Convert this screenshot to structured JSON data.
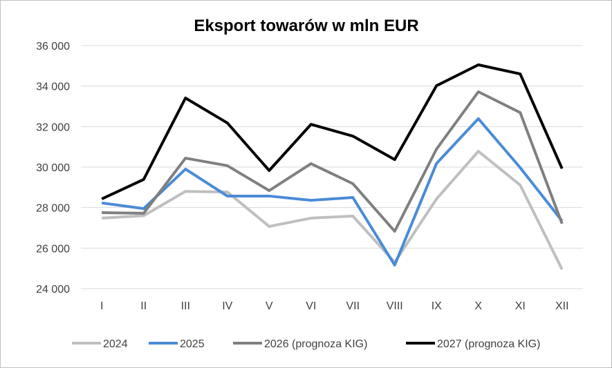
{
  "chart_data": {
    "type": "line",
    "title": "Eksport towarów w mln EUR",
    "xlabel": "",
    "ylabel": "",
    "categories": [
      "I",
      "II",
      "III",
      "IV",
      "V",
      "VI",
      "VII",
      "VIII",
      "IX",
      "X",
      "XI",
      "XII"
    ],
    "ylim": [
      24000,
      36000
    ],
    "yticks": [
      24000,
      26000,
      28000,
      30000,
      32000,
      34000,
      36000
    ],
    "ytick_labels": [
      "24 000",
      "26 000",
      "28 000",
      "30 000",
      "32 000",
      "34 000",
      "36 000"
    ],
    "grid": "horizontal",
    "legend_position": "bottom",
    "series": [
      {
        "name": "2024",
        "color": "#bfbfbf",
        "values": [
          27480,
          27600,
          28800,
          28770,
          27070,
          27480,
          27580,
          25300,
          28430,
          30780,
          29110,
          24950
        ]
      },
      {
        "name": "2025",
        "color": "#4a8bd6",
        "values": [
          28230,
          27950,
          29900,
          28570,
          28570,
          28360,
          28500,
          25160,
          30180,
          32390,
          29970,
          27340
        ]
      },
      {
        "name": "2026 (prognoza KIG)",
        "color": "#7f7f7f",
        "values": [
          27750,
          27720,
          30440,
          30070,
          28840,
          30170,
          29180,
          26830,
          30890,
          33720,
          32690,
          27210
        ]
      },
      {
        "name": "2027 (prognoza KIG)",
        "color": "#000000",
        "values": [
          28430,
          29390,
          33410,
          32180,
          29830,
          32110,
          31530,
          30370,
          34020,
          35050,
          34600,
          29930
        ]
      }
    ]
  }
}
